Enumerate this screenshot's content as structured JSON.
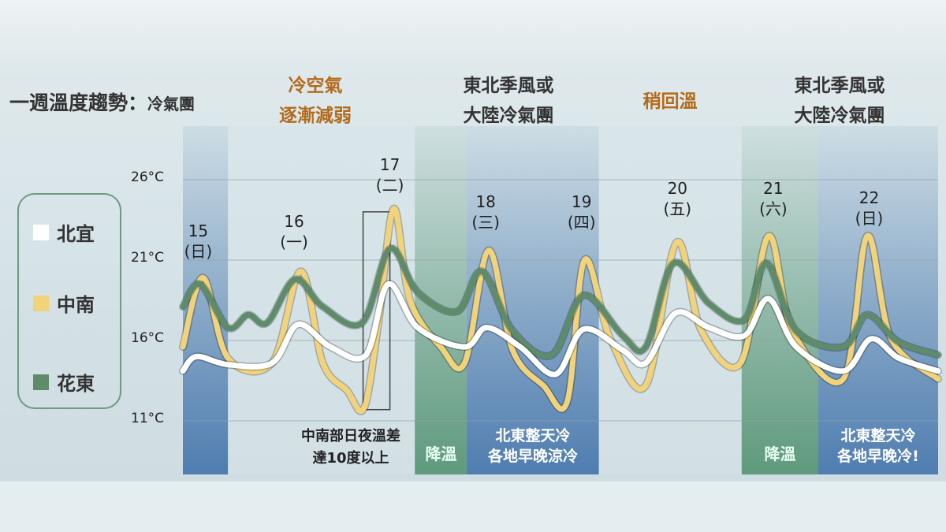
{
  "title": {
    "main": "一週溫度趨勢：",
    "sub": "冷氣團"
  },
  "annotations_top": [
    {
      "text": [
        "冷空氣",
        "逐漸減弱"
      ],
      "color": "#b46a1a"
    },
    {
      "text": [
        "東北季風或",
        "大陸冷氣團"
      ],
      "color": "#333333"
    },
    {
      "text": [
        "稍回溫"
      ],
      "color": "#b46a1a"
    },
    {
      "text": [
        "東北季風或",
        "大陸冷氣團"
      ],
      "color": "#333333"
    }
  ],
  "annotations_bottom": [
    {
      "text": [
        "中南部日夜溫差",
        "達10度以上"
      ]
    },
    {
      "text": [
        "降溫"
      ]
    },
    {
      "text": [
        "北東整天冷",
        "各地早晚涼冷"
      ]
    },
    {
      "text": [
        "降溫"
      ]
    },
    {
      "text": [
        "北東整天冷",
        "各地早晚冷!"
      ]
    }
  ],
  "legend": [
    {
      "label": "北宜",
      "color": "#ffffff"
    },
    {
      "label": "中南",
      "color": "#f2d37a"
    },
    {
      "label": "花東",
      "color": "#5e8c6a"
    }
  ],
  "chart_data": {
    "type": "line",
    "title": "一週溫度趨勢：冷氣團",
    "xlabel": "",
    "ylabel": "",
    "ylim": [
      11,
      26
    ],
    "xlim": [
      14.84,
      22.72
    ],
    "yticks": [
      {
        "value": 26,
        "label": "26°C"
      },
      {
        "value": 21,
        "label": "21°C"
      },
      {
        "value": 16,
        "label": "16°C"
      },
      {
        "value": 11,
        "label": "11°C"
      }
    ],
    "days": [
      {
        "day": 15,
        "num": "15",
        "wd": "(日)"
      },
      {
        "day": 16,
        "num": "16",
        "wd": "(一)"
      },
      {
        "day": 17,
        "num": "17",
        "wd": "(二)"
      },
      {
        "day": 18,
        "num": "18",
        "wd": "(三)"
      },
      {
        "day": 19,
        "num": "19",
        "wd": "(四)"
      },
      {
        "day": 20,
        "num": "20",
        "wd": "(五)"
      },
      {
        "day": 21,
        "num": "21",
        "wd": "(六)"
      },
      {
        "day": 22,
        "num": "22",
        "wd": "(日)"
      }
    ],
    "bands": [
      {
        "from": 14.84,
        "to": 15.31,
        "kind": "cold",
        "color": "#4f7db0"
      },
      {
        "from": 17.26,
        "to": 17.8,
        "kind": "cooling",
        "color": "#5f9a7c"
      },
      {
        "from": 17.8,
        "to": 19.18,
        "kind": "cold",
        "color": "#4f7db0"
      },
      {
        "from": 20.67,
        "to": 21.47,
        "kind": "cooling",
        "color": "#5f9a7c"
      },
      {
        "from": 21.47,
        "to": 22.72,
        "kind": "cold",
        "color": "#4f7db0"
      }
    ],
    "highlight": {
      "from": 16.72,
      "to": 17.0,
      "tmin": 11.7,
      "tmax": 24.0
    },
    "series": [
      {
        "name": "中南",
        "color": "#f2d37a",
        "x": [
          14.84,
          15.05,
          15.31,
          15.77,
          16.07,
          16.3,
          16.55,
          16.73,
          16.88,
          17.04,
          17.21,
          17.53,
          17.78,
          18.03,
          18.28,
          18.6,
          18.85,
          19.03,
          19.3,
          19.67,
          19.99,
          20.25,
          20.66,
          20.95,
          21.2,
          21.73,
          21.98,
          22.23,
          22.72
        ],
        "y": [
          15.6,
          19.9,
          14.9,
          14.6,
          20.3,
          14.6,
          12.9,
          11.8,
          17.1,
          24.2,
          18.5,
          15.6,
          14.6,
          21.6,
          15.4,
          13.2,
          12.2,
          21.0,
          16.1,
          13.2,
          22.1,
          16.6,
          14.6,
          22.5,
          16.6,
          13.6,
          22.5,
          16.1,
          13.6
        ]
      },
      {
        "name": "花東",
        "color": "#5e8c6a",
        "x": [
          14.84,
          15.02,
          15.31,
          15.52,
          15.72,
          16.01,
          16.3,
          16.71,
          17.0,
          17.29,
          17.7,
          17.96,
          18.28,
          18.69,
          19.02,
          19.43,
          19.67,
          19.96,
          20.33,
          20.7,
          20.93,
          21.24,
          21.73,
          21.98,
          22.31,
          22.72
        ],
        "y": [
          18.1,
          19.5,
          16.8,
          17.6,
          17.1,
          19.8,
          18.1,
          17.1,
          21.7,
          19.0,
          17.8,
          20.3,
          16.6,
          15.1,
          18.8,
          16.3,
          15.6,
          20.8,
          18.3,
          17.3,
          20.8,
          16.6,
          15.6,
          17.6,
          15.9,
          15.1
        ]
      },
      {
        "name": "北宜",
        "color": "#ffffff",
        "x": [
          14.84,
          14.98,
          15.31,
          15.77,
          16.04,
          16.38,
          16.75,
          16.98,
          17.29,
          17.78,
          18.01,
          18.36,
          18.73,
          19.02,
          19.43,
          19.67,
          19.98,
          20.33,
          20.7,
          20.95,
          21.24,
          21.73,
          22.02,
          22.31,
          22.72
        ],
        "y": [
          14.1,
          15.0,
          14.5,
          14.6,
          17.0,
          15.6,
          15.1,
          19.5,
          16.8,
          15.6,
          16.8,
          15.6,
          13.9,
          16.7,
          15.4,
          14.6,
          17.7,
          16.8,
          16.3,
          18.6,
          15.6,
          14.1,
          16.1,
          14.9,
          14.1
        ]
      }
    ]
  }
}
